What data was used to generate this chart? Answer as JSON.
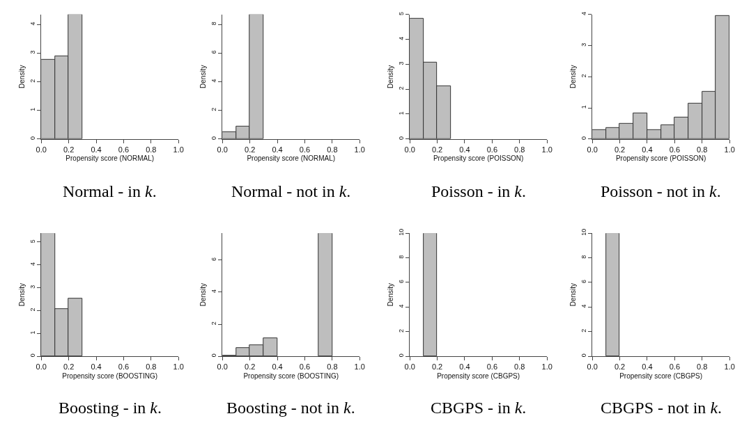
{
  "chart_data": [
    {
      "type": "histogram",
      "title": "Normal - in k.",
      "xlabel": "Propensity score (NORMAL)",
      "ylabel": "Density",
      "color": "#bebebe",
      "bins": [
        0,
        0.1,
        0.2,
        0.3,
        0.4,
        0.5,
        0.6,
        0.7,
        0.8,
        0.9,
        1.0
      ],
      "values": [
        2.78,
        2.89,
        4.35,
        0,
        0,
        0,
        0,
        0,
        0,
        0
      ],
      "xlim": [
        0,
        1
      ],
      "ylim": [
        0,
        4.35
      ],
      "xticks": [
        {
          "value": 0,
          "label": "0.0"
        },
        {
          "value": 0.2,
          "label": "0.2"
        },
        {
          "value": 0.4,
          "label": "0.4"
        },
        {
          "value": 0.6,
          "label": "0.6"
        },
        {
          "value": 0.8,
          "label": "0.8"
        },
        {
          "value": 1,
          "label": "1.0"
        }
      ],
      "yticks": [
        0,
        1,
        2,
        3,
        4
      ]
    },
    {
      "type": "histogram",
      "title": "Normal - not in k.",
      "xlabel": "Propensity score (NORMAL)",
      "ylabel": "Density",
      "color": "#bebebe",
      "bins": [
        0,
        0.1,
        0.2,
        0.3,
        0.4,
        0.5,
        0.6,
        0.7,
        0.8,
        0.9,
        1.0
      ],
      "values": [
        0.46,
        0.85,
        8.69,
        0,
        0,
        0,
        0,
        0,
        0,
        0
      ],
      "xlim": [
        0,
        1
      ],
      "ylim": [
        0,
        8.69
      ],
      "xticks": [
        {
          "value": 0,
          "label": "0.0"
        },
        {
          "value": 0.2,
          "label": "0.2"
        },
        {
          "value": 0.4,
          "label": "0.4"
        },
        {
          "value": 0.6,
          "label": "0.6"
        },
        {
          "value": 0.8,
          "label": "0.8"
        },
        {
          "value": 1,
          "label": "1.0"
        }
      ],
      "yticks": [
        0,
        2,
        4,
        6,
        8
      ]
    },
    {
      "type": "histogram",
      "title": "Poisson - in k.",
      "xlabel": "Propensity score (POISSON)",
      "ylabel": "Density",
      "color": "#bebebe",
      "bins": [
        0,
        0.1,
        0.2,
        0.3,
        0.4,
        0.5,
        0.6,
        0.7,
        0.8,
        0.9,
        1.0
      ],
      "values": [
        4.84,
        3.07,
        2.12,
        0,
        0,
        0,
        0,
        0,
        0,
        0
      ],
      "xlim": [
        0,
        1
      ],
      "ylim": [
        0,
        5
      ],
      "xticks": [
        {
          "value": 0,
          "label": "0.0"
        },
        {
          "value": 0.2,
          "label": "0.2"
        },
        {
          "value": 0.4,
          "label": "0.4"
        },
        {
          "value": 0.6,
          "label": "0.6"
        },
        {
          "value": 0.8,
          "label": "0.8"
        },
        {
          "value": 1,
          "label": "1.0"
        }
      ],
      "yticks": [
        0,
        1,
        2,
        3,
        4,
        5
      ]
    },
    {
      "type": "histogram",
      "title": "Poisson - not in k.",
      "xlabel": "Propensity score (POISSON)",
      "ylabel": "Density",
      "color": "#bebebe",
      "bins": [
        0,
        0.1,
        0.2,
        0.3,
        0.4,
        0.5,
        0.6,
        0.7,
        0.8,
        0.9,
        1.0
      ],
      "values": [
        0.28,
        0.35,
        0.5,
        0.83,
        0.28,
        0.44,
        0.69,
        1.13,
        1.51,
        3.95
      ],
      "xlim": [
        0,
        1
      ],
      "ylim": [
        0,
        4
      ],
      "xticks": [
        {
          "value": 0,
          "label": "0.0"
        },
        {
          "value": 0.2,
          "label": "0.2"
        },
        {
          "value": 0.4,
          "label": "0.4"
        },
        {
          "value": 0.6,
          "label": "0.6"
        },
        {
          "value": 0.8,
          "label": "0.8"
        },
        {
          "value": 1,
          "label": "1.0"
        }
      ],
      "yticks": [
        0,
        1,
        2,
        3,
        4
      ]
    },
    {
      "type": "histogram",
      "title": "Boosting - in k.",
      "xlabel": "Propensity score (BOOSTING)",
      "ylabel": "Density",
      "color": "#bebebe",
      "bins": [
        0,
        0.1,
        0.2,
        0.3,
        0.4,
        0.5,
        0.6,
        0.7,
        0.8,
        0.9,
        1.0
      ],
      "values": [
        5.39,
        2.08,
        2.53,
        0,
        0,
        0,
        0,
        0,
        0,
        0
      ],
      "xlim": [
        0,
        1
      ],
      "ylim": [
        0,
        5.39
      ],
      "xticks": [
        {
          "value": 0,
          "label": "0.0"
        },
        {
          "value": 0.2,
          "label": "0.2"
        },
        {
          "value": 0.4,
          "label": "0.4"
        },
        {
          "value": 0.6,
          "label": "0.6"
        },
        {
          "value": 0.8,
          "label": "0.8"
        },
        {
          "value": 1,
          "label": "1.0"
        }
      ],
      "yticks": [
        0,
        1,
        2,
        3,
        4,
        5
      ]
    },
    {
      "type": "histogram",
      "title": "Boosting - not in k.",
      "xlabel": "Propensity score (BOOSTING)",
      "ylabel": "Density",
      "color": "#bebebe",
      "bins": [
        0,
        0.1,
        0.2,
        0.3,
        0.4,
        0.5,
        0.6,
        0.7,
        0.8,
        0.9,
        1.0
      ],
      "values": [
        0.03,
        0.51,
        0.69,
        1.11,
        0,
        0,
        0,
        7.68,
        0,
        0
      ],
      "xlim": [
        0,
        1
      ],
      "ylim": [
        0,
        7.68
      ],
      "xticks": [
        {
          "value": 0,
          "label": "0.0"
        },
        {
          "value": 0.2,
          "label": "0.2"
        },
        {
          "value": 0.4,
          "label": "0.4"
        },
        {
          "value": 0.6,
          "label": "0.6"
        },
        {
          "value": 0.8,
          "label": "0.8"
        },
        {
          "value": 1,
          "label": "1.0"
        }
      ],
      "yticks": [
        0,
        2,
        4,
        6
      ]
    },
    {
      "type": "histogram",
      "title": "CBGPS - in k.",
      "xlabel": "Propensity score (CBGPS)",
      "ylabel": "Density",
      "color": "#bebebe",
      "bins": [
        0,
        0.1,
        0.2,
        0.3,
        0.4,
        0.5,
        0.6,
        0.7,
        0.8,
        0.9,
        1.0
      ],
      "values": [
        0,
        10,
        0,
        0,
        0,
        0,
        0,
        0,
        0,
        0
      ],
      "xlim": [
        0,
        1
      ],
      "ylim": [
        0,
        10
      ],
      "xticks": [
        {
          "value": 0,
          "label": "0.0"
        },
        {
          "value": 0.2,
          "label": "0.2"
        },
        {
          "value": 0.4,
          "label": "0.4"
        },
        {
          "value": 0.6,
          "label": "0.6"
        },
        {
          "value": 0.8,
          "label": "0.8"
        },
        {
          "value": 1,
          "label": "1.0"
        }
      ],
      "yticks": [
        0,
        2,
        4,
        6,
        8,
        10
      ]
    },
    {
      "type": "histogram",
      "title": "CBGPS - not in k.",
      "xlabel": "Propensity score (CBGPS)",
      "ylabel": "Density",
      "color": "#bebebe",
      "bins": [
        0,
        0.1,
        0.2,
        0.3,
        0.4,
        0.5,
        0.6,
        0.7,
        0.8,
        0.9,
        1.0
      ],
      "values": [
        0,
        10,
        0,
        0,
        0,
        0,
        0,
        0,
        0,
        0
      ],
      "xlim": [
        0,
        1
      ],
      "ylim": [
        0,
        10
      ],
      "xticks": [
        {
          "value": 0,
          "label": "0.0"
        },
        {
          "value": 0.2,
          "label": "0.2"
        },
        {
          "value": 0.4,
          "label": "0.4"
        },
        {
          "value": 0.6,
          "label": "0.6"
        },
        {
          "value": 0.8,
          "label": "0.8"
        },
        {
          "value": 1,
          "label": "1.0"
        }
      ],
      "yticks": [
        0,
        2,
        4,
        6,
        8,
        10
      ]
    }
  ]
}
